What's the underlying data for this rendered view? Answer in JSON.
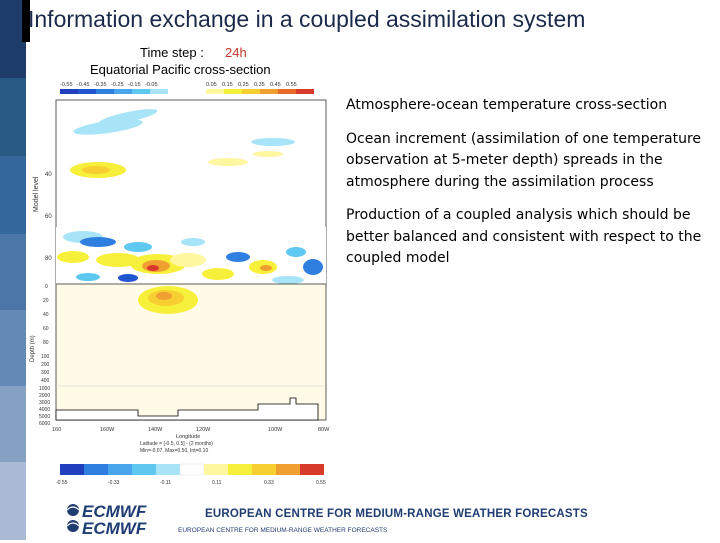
{
  "slide": {
    "title": "Information exchange in a coupled assimilation system",
    "bullets": [
      "Atmosphere-ocean temperature cross-section",
      "Ocean increment (assimilation of one temperature observation at 5-meter depth) spreads in the atmosphere during the assimilation process",
      "Production of a coupled analysis which should be better balanced and consistent with respect to the coupled model"
    ]
  },
  "figure": {
    "time_step_label": "Time step :",
    "time_step_value": "24h",
    "cross_section_title": "Equatorial Pacific cross-section",
    "colorbar_top_ticks": [
      "-0.55",
      "-0.45",
      "-0.35",
      "-0.25",
      "-0.15",
      "-0.05",
      "0.05",
      "0.15",
      "0.25",
      "0.35",
      "0.45",
      "0.55"
    ],
    "atm_ylabel": "Model level",
    "atm_yticks": [
      "40",
      "60",
      "80"
    ],
    "ocean_ylabel": "Depth (m)",
    "ocean_yticks": [
      "0",
      "20",
      "40",
      "60",
      "80",
      "100",
      "200",
      "300",
      "400",
      "1000",
      "2000",
      "3000",
      "4000",
      "5000",
      "6000"
    ],
    "x_ticks": [
      "160",
      "160W",
      "140W",
      "120W",
      "100W",
      "80W"
    ],
    "x_label": "Longitude",
    "x_info1": "Latitude = [-0.5, 0.5] - (2 months)",
    "x_info2": "Min=-0.07, Max=0.50, Int=0.10",
    "colorbar_bottom_ticks": [
      "-0.55",
      "-0.33",
      "-0.11",
      "0.11",
      "0.33",
      "0.55"
    ],
    "colors": {
      "blue_dark": "#1f3fbf",
      "blue": "#2f7fe0",
      "cyan": "#5ec8f0",
      "yellow": "#f7f03a",
      "orange": "#f0a030",
      "red": "#d83a2a",
      "ocean_bg": "#fffbe6"
    }
  },
  "footer": {
    "logo_text": "ECMWF",
    "org_name_upper": "EUROPEAN CENTRE FOR MEDIUM-RANGE WEATHER FORECASTS",
    "org_name_small": "EUROPEAN CENTRE FOR MEDIUM-RANGE WEATHER FORECASTS"
  },
  "sidebar_colors": [
    "#1e3c6a",
    "#23507e",
    "#2e6590",
    "#3c76a0",
    "#527fae",
    "#6b90ba",
    "#8aa3c5",
    "#aabad4"
  ]
}
